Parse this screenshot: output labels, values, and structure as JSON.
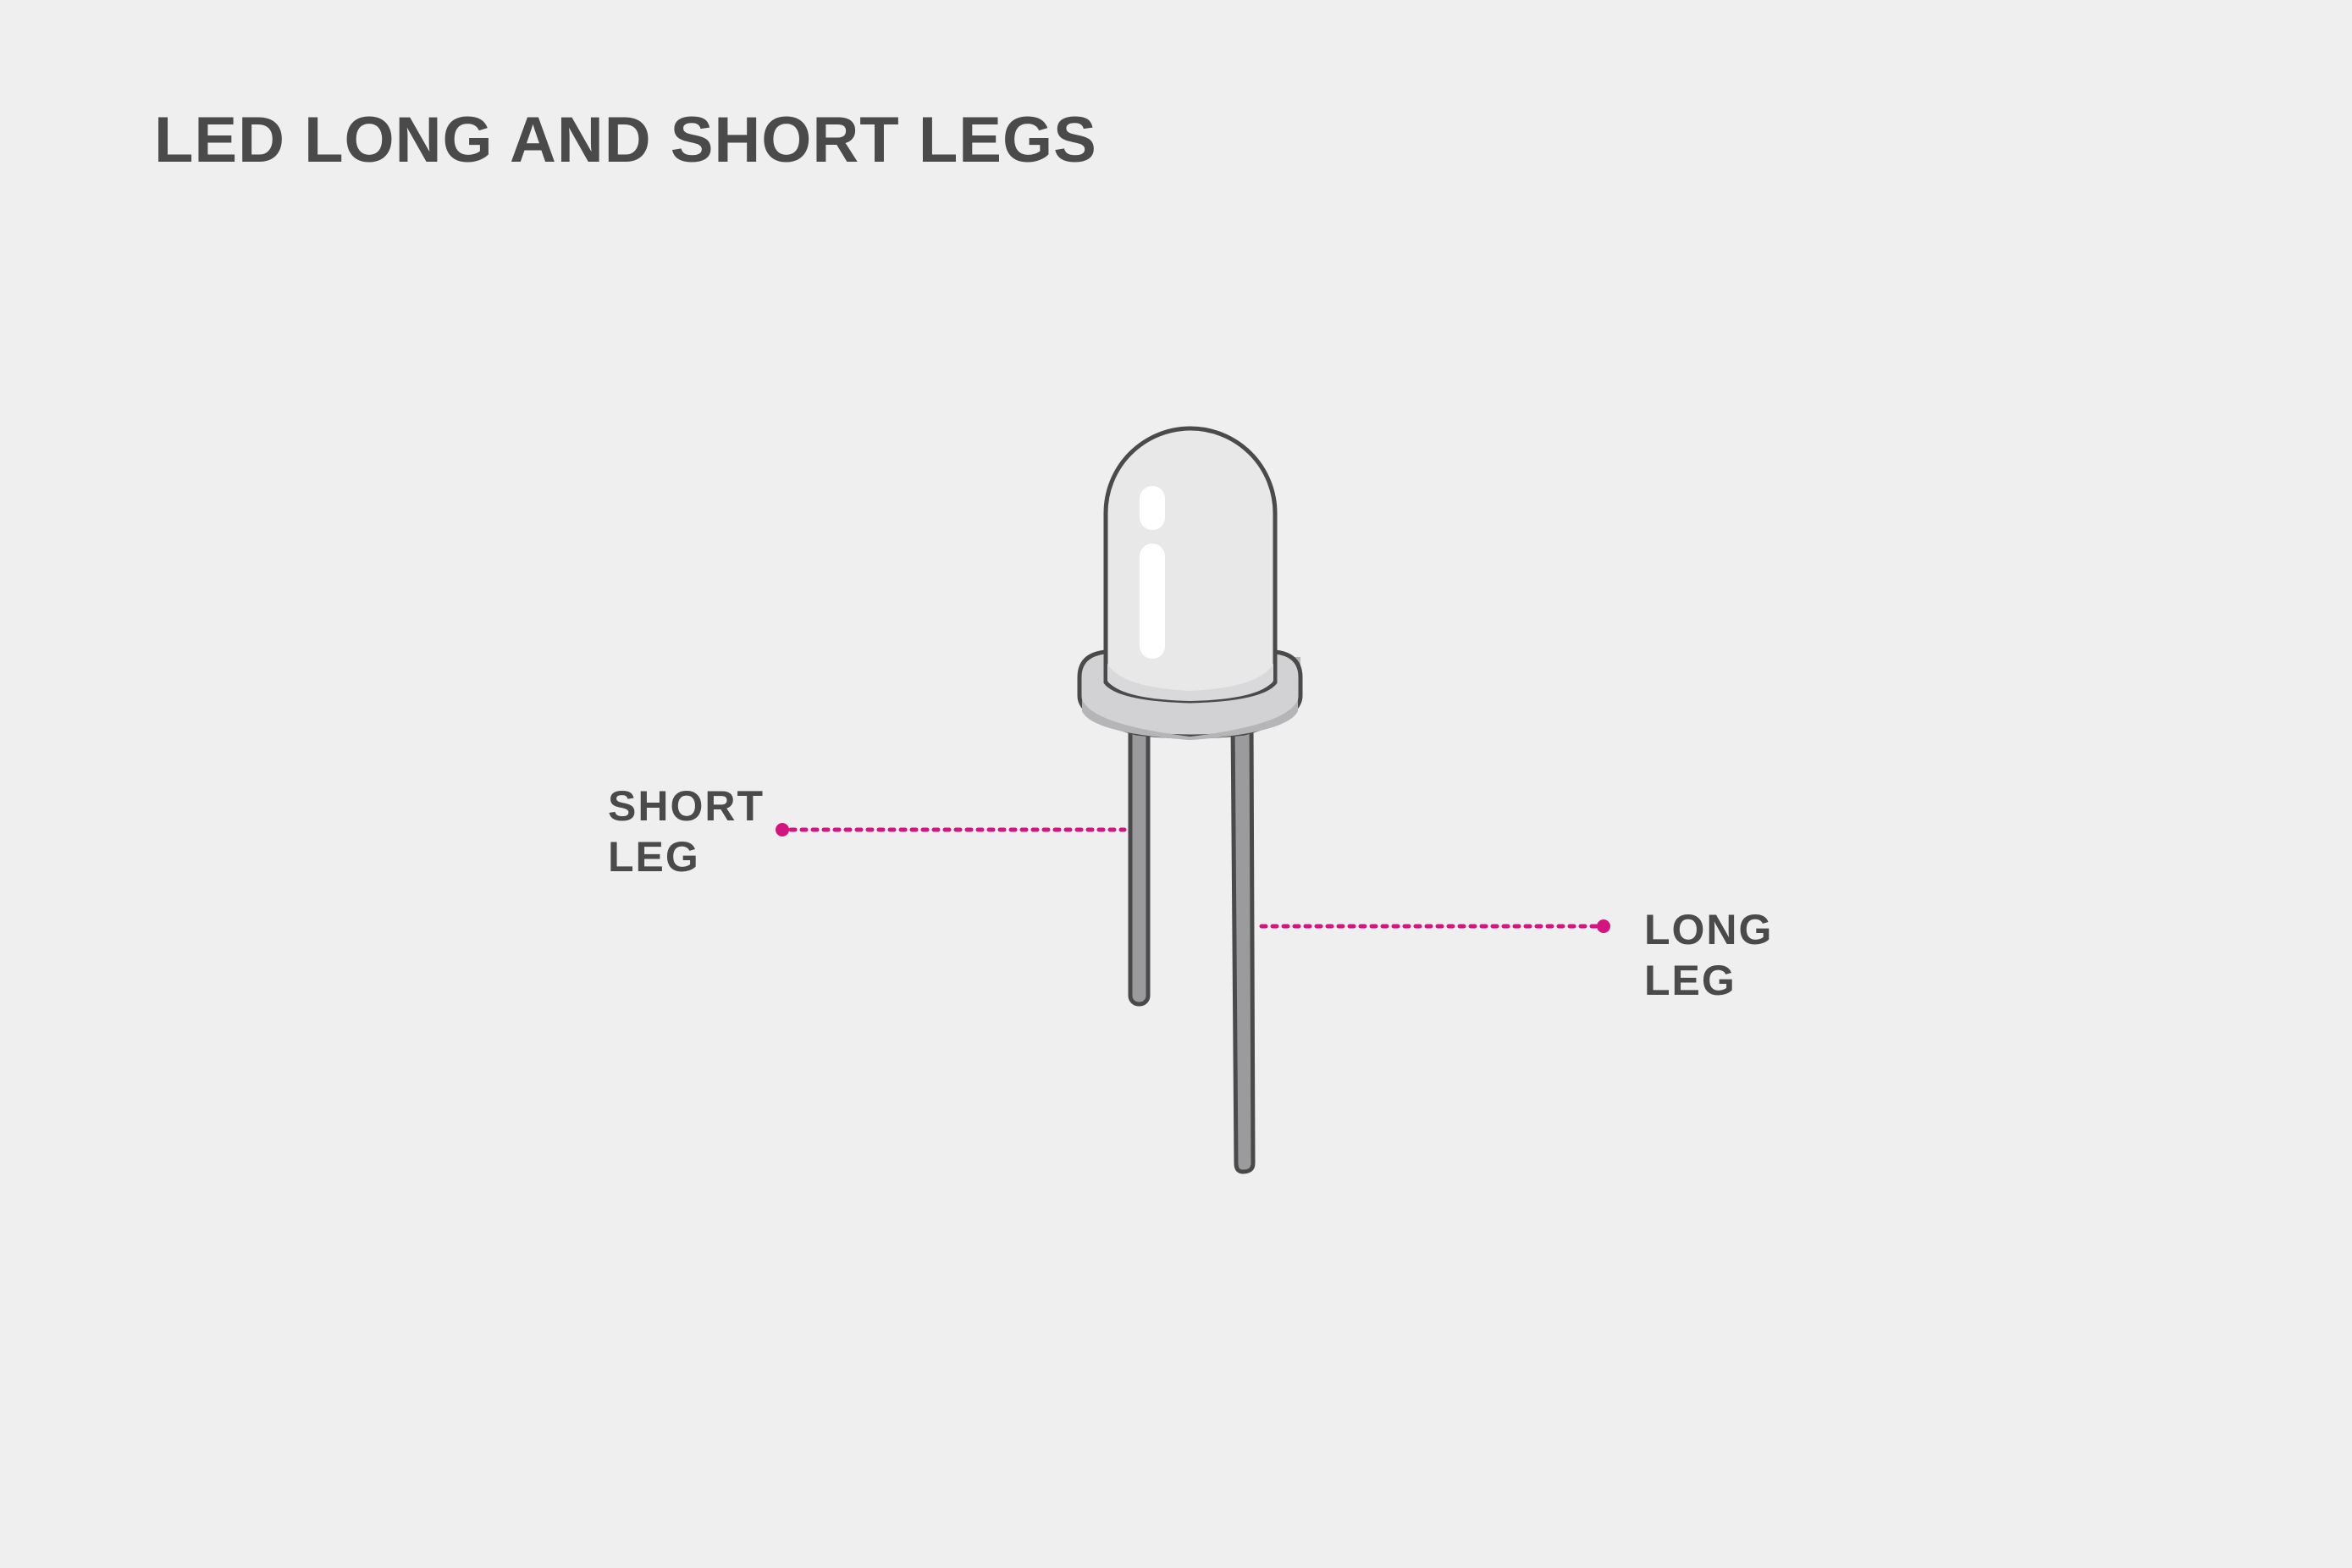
{
  "title": "LED LONG AND SHORT LEGS",
  "labels": {
    "short_leg": {
      "line1": "SHORT",
      "line2": "LEG"
    },
    "long_leg": {
      "line1": "LONG",
      "line2": "LEG"
    }
  },
  "colors": {
    "background": "#efefef",
    "text": "#4a4a4a",
    "outline": "#4a4a4a",
    "leg": "#9b9b9d",
    "bulb": "#e8e8e8",
    "rim": "#cfcfcf",
    "rim_shadow": "#b7b7b9",
    "highlight": "#ffffff",
    "leader_line": "#d4147f"
  }
}
